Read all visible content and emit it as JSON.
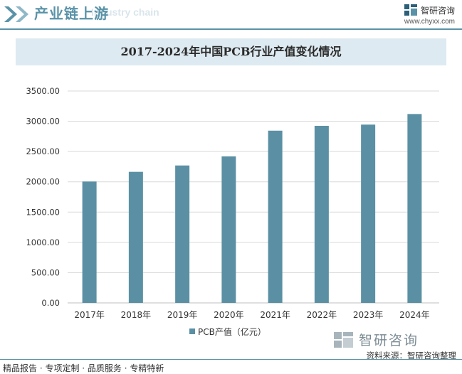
{
  "header": {
    "section_title": "产业链上游",
    "ghost_text": "Industry chain",
    "brand_name": "智研咨询",
    "brand_url": "www.chyxx.com"
  },
  "chart_data": {
    "type": "bar",
    "title": "2017-2024年中国PCB行业产值变化情况",
    "categories": [
      "2017年",
      "2018年",
      "2019年",
      "2020年",
      "2021年",
      "2022年",
      "2023年",
      "2024年"
    ],
    "series": [
      {
        "name": "PCB产值（亿元）",
        "values": [
          2005,
          2165,
          2270,
          2420,
          2845,
          2925,
          2945,
          3120
        ]
      }
    ],
    "yticks": [
      "0.00",
      "500.00",
      "1000.00",
      "1500.00",
      "2000.00",
      "2500.00",
      "3000.00",
      "3500.00"
    ],
    "ylim": [
      0,
      3500
    ],
    "grid": true,
    "legend_position": "bottom",
    "bar_color": "#5b90a4"
  },
  "footer": {
    "tagline": "精品报告 · 专项定制 · 品质服务 · 专精特新",
    "brand_name": "智研咨询",
    "source": "资料来源：智研咨询整理"
  },
  "colors": {
    "accent": "#5a93a8",
    "title_band": "#deeaf1"
  }
}
